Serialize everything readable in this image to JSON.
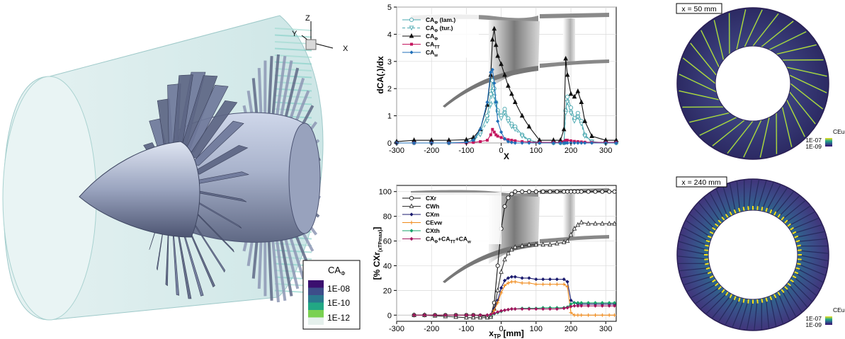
{
  "render_3d": {
    "axis_labels": {
      "z": "Z",
      "y": "Y",
      "x": "X"
    },
    "legend": {
      "title": "CA",
      "title_sub": "Φ",
      "ticks": [
        "1E-08",
        "1E-10",
        "1E-12"
      ],
      "colors": [
        "#3b0f6f",
        "#3d4d8a",
        "#2a788e",
        "#22a884",
        "#7ad151",
        "#e5f0ec"
      ]
    },
    "colors": {
      "hub": "#aeb8cf",
      "blade": "#5c6583",
      "casing": "#d6ecec",
      "casing_edge": "#7ecfc4"
    }
  },
  "slices": [
    {
      "label": "x = 50 mm",
      "legend_title": "CEu",
      "legend_ticks": [
        "1E-07",
        "1E-09"
      ],
      "blades": 28,
      "base_color": "#3a2a6a",
      "highlight": "#f7e21a"
    },
    {
      "label": "x = 240 mm",
      "legend_title": "CEu",
      "legend_ticks": [
        "1E-07",
        "1E-09"
      ],
      "blades": 64,
      "base_color": "#3a3f7f",
      "highlight": "#f7e21a"
    }
  ],
  "chart_data": [
    {
      "type": "line",
      "xlabel": "X",
      "ylabel": "dCA(.)/dx",
      "xlim": [
        -300,
        330
      ],
      "ylim": [
        0,
        5
      ],
      "xticks": [
        -300,
        -200,
        -100,
        0,
        100,
        200,
        300
      ],
      "yticks": [
        0,
        1,
        2,
        3,
        4,
        5
      ],
      "grid": true,
      "legend": "top-left",
      "x": [
        -300,
        -250,
        -200,
        -150,
        -100,
        -80,
        -60,
        -40,
        -30,
        -25,
        -20,
        -15,
        -10,
        0,
        10,
        20,
        30,
        40,
        60,
        80,
        110,
        150,
        170,
        180,
        185,
        190,
        200,
        210,
        220,
        230,
        240,
        260,
        300,
        330
      ],
      "series": [
        {
          "name": "CA",
          "sub": "Φ",
          "suffix": " (lam.)",
          "color": "#4aa8b0",
          "marker": "circle-open",
          "dash": "",
          "values": [
            0,
            0,
            0,
            0,
            0.02,
            0.1,
            0.4,
            1.0,
            1.8,
            2.3,
            2.0,
            1.5,
            1.2,
            1.0,
            1.25,
            0.9,
            0.7,
            0.6,
            0.3,
            0.1,
            0.02,
            0,
            0,
            0,
            1.2,
            1.7,
            1.3,
            0.9,
            1.1,
            0.8,
            0.3,
            0.05,
            0,
            0
          ]
        },
        {
          "name": "CA",
          "sub": "Φ",
          "suffix": " (tur.)",
          "color": "#4aa8b0",
          "marker": "triangle-down-open",
          "dash": "4 3",
          "values": [
            0,
            0,
            0,
            0,
            0.02,
            0.1,
            0.3,
            0.8,
            1.4,
            1.9,
            1.7,
            1.4,
            1.1,
            0.9,
            1.1,
            0.8,
            0.6,
            0.5,
            0.25,
            0.08,
            0.02,
            0,
            0,
            0,
            1.1,
            1.5,
            1.1,
            0.8,
            0.95,
            0.7,
            0.25,
            0.04,
            0,
            0
          ]
        },
        {
          "name": "CA",
          "sub": "Φ",
          "suffix": "",
          "color": "#111111",
          "marker": "triangle",
          "dash": "",
          "values": [
            0.05,
            0.1,
            0.1,
            0.1,
            0.12,
            0.2,
            0.5,
            1.4,
            2.5,
            3.8,
            4.2,
            3.6,
            3.2,
            2.9,
            2.5,
            2.1,
            1.8,
            1.5,
            1.0,
            0.6,
            0.1,
            0.1,
            0.1,
            0.5,
            3.1,
            2.5,
            1.8,
            1.7,
            1.9,
            1.5,
            0.8,
            0.25,
            0.1,
            0.1
          ]
        },
        {
          "name": "CA",
          "sub": "TT",
          "suffix": "",
          "color": "#c4155e",
          "marker": "square",
          "dash": "",
          "values": [
            0,
            0,
            0,
            0,
            0,
            0.02,
            0.05,
            0.1,
            0.3,
            0.5,
            0.4,
            0.3,
            0.25,
            0.2,
            0.15,
            0.12,
            0.1,
            0.08,
            0.05,
            0.03,
            0.02,
            0.02,
            0.02,
            0.05,
            0.1,
            0.1,
            0.08,
            0.06,
            0.05,
            0.04,
            0.03,
            0.02,
            0.02,
            0.02
          ]
        },
        {
          "name": "CA",
          "sub": "w",
          "suffix": "",
          "color": "#1f6fb8",
          "marker": "diamond",
          "dash": "",
          "values": [
            0,
            0,
            0,
            0,
            0.02,
            0.1,
            0.5,
            1.5,
            2.6,
            2.7,
            2.2,
            1.5,
            0.8,
            0.4,
            0.15,
            0.05,
            0.02,
            0,
            0,
            0,
            0,
            0,
            0,
            0,
            0,
            0,
            0,
            0,
            0,
            0,
            0,
            0,
            0,
            0
          ]
        }
      ]
    },
    {
      "type": "line",
      "xlabel": "x",
      "xlabel_sub": "TP",
      "xlabel_suffix": " [mm]",
      "ylabel": "[% CXr",
      "ylabel_sub": "(xTPmax)",
      "ylabel_suffix": "]",
      "xlim": [
        -300,
        330
      ],
      "ylim": [
        -5,
        105
      ],
      "xticks": [
        -300,
        -200,
        -100,
        0,
        100,
        200,
        300
      ],
      "yticks": [
        0,
        20,
        40,
        60,
        80,
        100
      ],
      "grid": true,
      "legend": "top-left",
      "x": [
        -250,
        -220,
        -190,
        -160,
        -130,
        -100,
        -80,
        -60,
        -40,
        -30,
        -20,
        -10,
        0,
        10,
        20,
        30,
        40,
        60,
        80,
        100,
        120,
        140,
        160,
        180,
        190,
        200,
        210,
        220,
        230,
        250,
        270,
        290,
        310,
        325
      ],
      "series": [
        {
          "name": "CXr",
          "sub": "",
          "suffix": "",
          "color": "#111111",
          "marker": "circle-open",
          "values": [
            0,
            0,
            0,
            0,
            0,
            0,
            0,
            -0.5,
            -1,
            -1,
            10,
            40,
            70,
            88,
            95,
            98,
            100,
            100,
            100,
            100,
            100,
            100,
            100,
            100,
            100,
            100,
            100,
            100,
            100,
            100,
            100,
            100,
            100,
            100
          ]
        },
        {
          "name": "CWh",
          "sub": "",
          "suffix": "",
          "color": "#333333",
          "marker": "triangle-open",
          "values": [
            0,
            0,
            -0.5,
            -1,
            -1.5,
            -2,
            -2,
            -2,
            -2,
            -1.5,
            5,
            20,
            35,
            45,
            50,
            53,
            55,
            56,
            57,
            57,
            57,
            57,
            58,
            59,
            60,
            65,
            70,
            73,
            75,
            74,
            74,
            74,
            74,
            74
          ]
        },
        {
          "name": "CXm",
          "sub": "",
          "suffix": "",
          "color": "#1a1a6e",
          "marker": "diamond",
          "values": [
            0,
            0,
            0,
            0,
            0,
            0,
            0,
            0,
            0,
            0,
            5,
            12,
            22,
            28,
            30,
            31,
            31,
            30,
            30,
            29,
            29,
            29,
            29,
            29,
            27,
            12,
            10,
            9,
            9,
            9,
            9,
            9,
            9,
            9
          ]
        },
        {
          "name": "CEvw",
          "sub": "",
          "suffix": "",
          "color": "#f08a1a",
          "marker": "plus",
          "values": [
            0,
            0,
            0,
            0,
            0,
            0,
            0,
            0,
            0,
            0,
            4,
            10,
            18,
            24,
            26,
            27,
            27,
            26,
            26,
            25,
            25,
            25,
            25,
            25,
            23,
            2,
            0,
            0,
            0,
            0,
            0,
            0,
            0,
            0
          ]
        },
        {
          "name": "CXth",
          "sub": "",
          "suffix": "",
          "color": "#1aa36b",
          "marker": "diamond",
          "values": [
            0,
            0,
            0,
            0,
            0,
            0,
            0,
            0,
            0,
            0,
            1,
            2,
            3,
            4,
            4.5,
            5,
            5,
            5.5,
            5.5,
            5.5,
            6,
            6,
            6,
            6,
            6.5,
            9,
            10,
            10,
            10,
            10,
            10,
            10,
            10,
            10
          ]
        },
        {
          "name": "CA",
          "sub": "Φ",
          "suffix": "+CA",
          "sub2": "TT",
          "suffix2": "+CA",
          "sub3": "w",
          "color": "#a3155e",
          "marker": "diamond",
          "values": [
            0,
            0,
            0,
            0,
            0,
            0,
            0,
            0,
            0,
            0.5,
            1.5,
            2.5,
            3.5,
            4,
            4.5,
            5,
            5,
            5,
            5,
            5,
            5,
            5,
            5,
            5.5,
            6,
            7,
            7.5,
            7.5,
            7.5,
            7.5,
            7.5,
            7.5,
            7.5,
            7.5
          ]
        }
      ]
    }
  ]
}
